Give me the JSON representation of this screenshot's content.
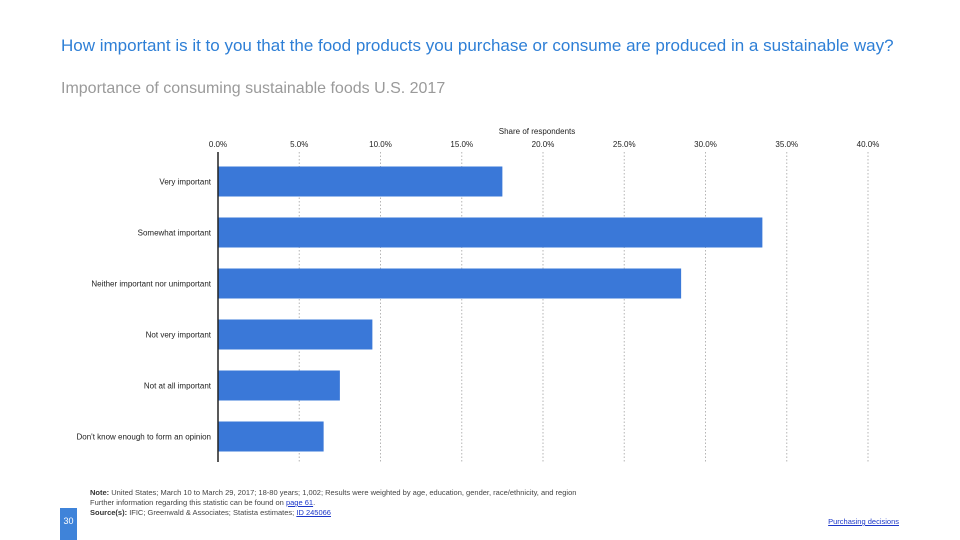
{
  "header": {
    "title": "How important is it to you that the food products you purchase or consume are produced in a sustainable way?",
    "subtitle": "Importance of consuming sustainable foods U.S. 2017"
  },
  "chart_data": {
    "type": "bar",
    "orientation": "horizontal",
    "xlabel": "Share of respondents",
    "xlim": [
      0,
      40
    ],
    "ticks": [
      "0.0%",
      "5.0%",
      "10.0%",
      "15.0%",
      "20.0%",
      "25.0%",
      "30.0%",
      "35.0%",
      "40.0%"
    ],
    "tick_values": [
      0,
      5,
      10,
      15,
      20,
      25,
      30,
      35,
      40
    ],
    "axis_position": "top",
    "grid": "vertical dotted",
    "categories": [
      "Very important",
      "Somewhat important",
      "Neither important nor unimportant",
      "Not very important",
      "Not at all important",
      "Don't know enough to form an opinion"
    ],
    "values": [
      17.5,
      33.5,
      28.5,
      9.5,
      7.5,
      6.5
    ],
    "bar_color": "#3a78d8"
  },
  "footer": {
    "note_label": "Note:",
    "note_text": "United States; March 10 to March 29, 2017; 18-80 years; 1,002; Results were weighted by age, education, gender, race/ethnicity, and region",
    "further_text": "Further information regarding this statistic can be found on",
    "further_link": "page 61",
    "source_label": "Source(s):",
    "source_text": "IFIC; Greenwald & Associates; Statista estimates;",
    "source_link": "ID 245066",
    "page_number": "30",
    "section_link": "Purchasing decisions"
  }
}
